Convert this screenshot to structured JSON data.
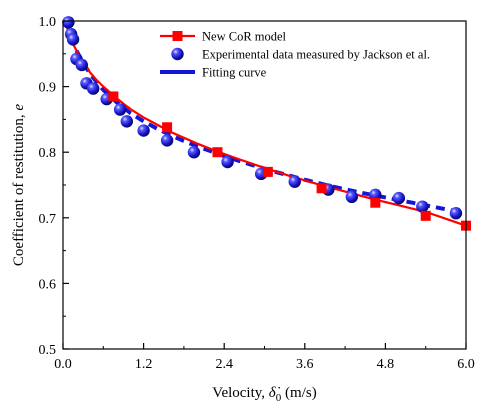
{
  "chart_data": {
    "type": "line",
    "xlabel_prefix": "Velocity, ",
    "xlabel_symbol": "δ̇",
    "xlabel_subscript": "0",
    "xlabel_unit": " (m/s)",
    "ylabel_prefix": "Coefficient of restitution, ",
    "ylabel_symbol": "e",
    "xlim": [
      0,
      6.0
    ],
    "ylim": [
      0.5,
      1.0
    ],
    "x_ticks": [
      "0.0",
      "1.2",
      "2.4",
      "3.6",
      "4.8",
      "6.0"
    ],
    "y_ticks": [
      "0.5",
      "0.6",
      "0.7",
      "0.8",
      "0.9",
      "1.0"
    ],
    "legend_position": "top-right",
    "series": [
      {
        "name": "New CoR model",
        "style": "line-square",
        "color": "#ff0000",
        "curve_x": [
          0.05,
          0.1,
          0.15,
          0.2,
          0.3,
          0.4,
          0.5,
          0.6,
          0.7,
          0.8,
          1.0,
          1.2,
          1.4,
          1.6,
          1.8,
          2.0,
          2.3,
          2.6,
          3.0,
          3.4,
          3.8,
          4.2,
          4.6,
          5.0,
          5.4,
          5.8,
          6.0
        ],
        "curve_y": [
          0.995,
          0.978,
          0.965,
          0.955,
          0.938,
          0.922,
          0.91,
          0.9,
          0.891,
          0.882,
          0.866,
          0.853,
          0.842,
          0.831,
          0.822,
          0.813,
          0.801,
          0.79,
          0.776,
          0.763,
          0.751,
          0.74,
          0.729,
          0.719,
          0.709,
          0.695,
          0.688
        ],
        "x": [
          0.75,
          1.55,
          2.3,
          3.05,
          3.85,
          4.65,
          5.4,
          6.0
        ],
        "y": [
          0.885,
          0.838,
          0.8,
          0.77,
          0.745,
          0.723,
          0.703,
          0.688
        ]
      },
      {
        "name": "Experimental data measured by Jackson et al.",
        "style": "sphere",
        "color": "#1515d8",
        "x": [
          0.08,
          0.12,
          0.15,
          0.2,
          0.28,
          0.35,
          0.45,
          0.65,
          0.85,
          0.95,
          1.2,
          1.55,
          1.95,
          2.45,
          2.95,
          3.45,
          3.95,
          4.3,
          4.65,
          5.0,
          5.35,
          5.85
        ],
        "y": [
          0.998,
          0.98,
          0.972,
          0.942,
          0.933,
          0.905,
          0.897,
          0.881,
          0.865,
          0.847,
          0.833,
          0.818,
          0.8,
          0.785,
          0.767,
          0.755,
          0.743,
          0.732,
          0.735,
          0.73,
          0.717,
          0.707
        ]
      },
      {
        "name": "Fitting curve",
        "style": "dashed",
        "color": "#1515d8",
        "x": [
          0.05,
          0.1,
          0.15,
          0.2,
          0.3,
          0.4,
          0.5,
          0.6,
          0.8,
          1.0,
          1.2,
          1.4,
          1.6,
          1.8,
          2.0,
          2.4,
          2.8,
          3.2,
          3.6,
          4.0,
          4.4,
          4.8,
          5.2,
          5.6,
          5.85
        ],
        "y": [
          0.998,
          0.982,
          0.967,
          0.955,
          0.936,
          0.92,
          0.907,
          0.895,
          0.876,
          0.86,
          0.847,
          0.836,
          0.826,
          0.817,
          0.809,
          0.794,
          0.781,
          0.769,
          0.758,
          0.748,
          0.739,
          0.731,
          0.723,
          0.715,
          0.71
        ]
      }
    ]
  }
}
